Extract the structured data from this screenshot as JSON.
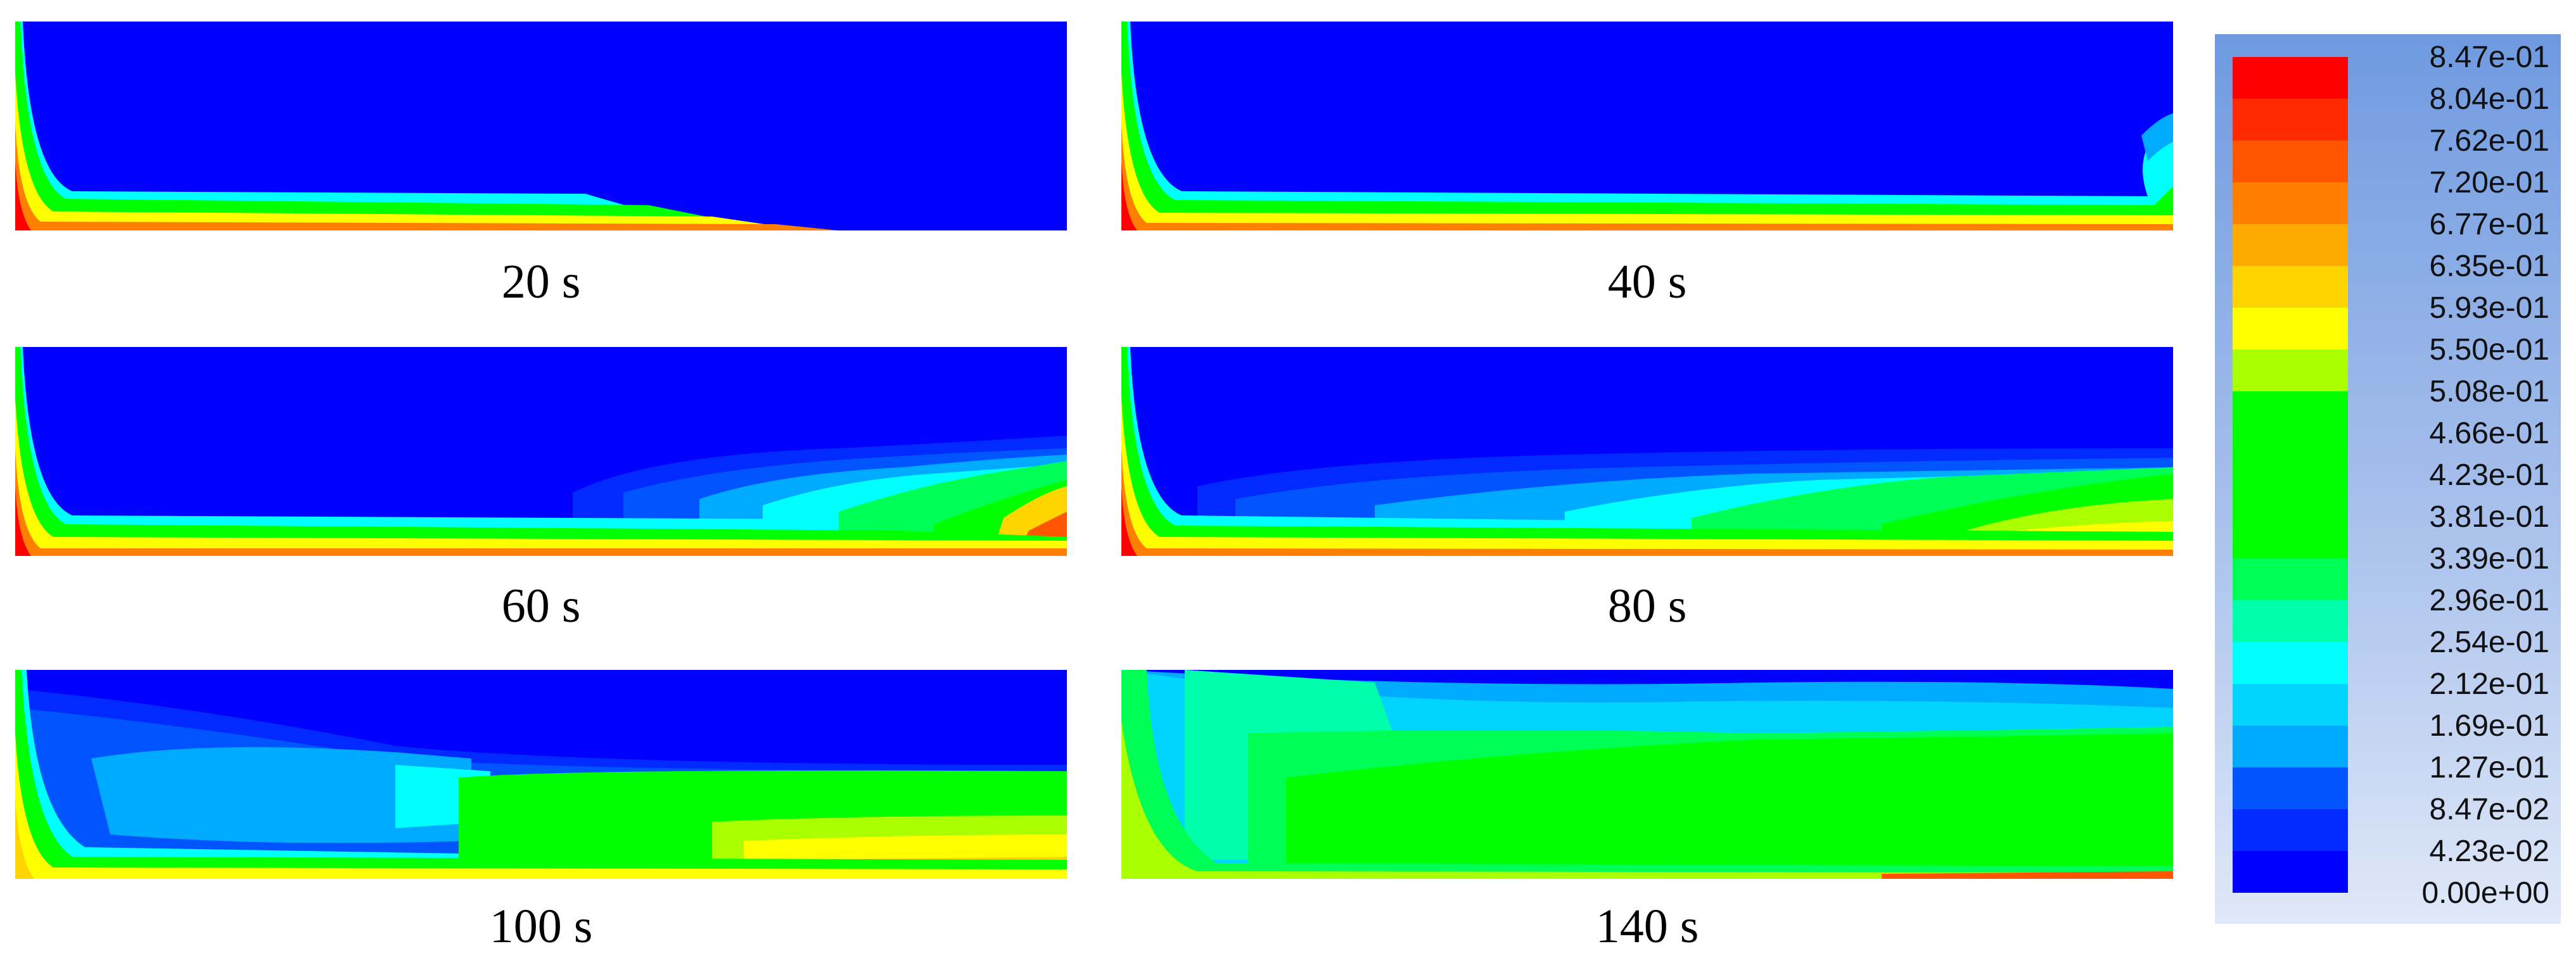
{
  "legend": {
    "colors": [
      "#ff0000",
      "#ff2a00",
      "#ff5500",
      "#ff7f00",
      "#ffaa00",
      "#ffd400",
      "#ffff00",
      "#aaff00",
      "#00ff00",
      "#00ff00",
      "#00ff00",
      "#00ff00",
      "#00ff55",
      "#00ffaa",
      "#00ffff",
      "#00d4ff",
      "#00aaff",
      "#0055ff",
      "#002aff",
      "#0000ff"
    ],
    "labels": [
      "8.47e-01",
      "8.04e-01",
      "7.62e-01",
      "7.20e-01",
      "6.77e-01",
      "6.35e-01",
      "5.93e-01",
      "5.50e-01",
      "5.08e-01",
      "4.66e-01",
      "4.23e-01",
      "3.81e-01",
      "3.39e-01",
      "2.96e-01",
      "2.54e-01",
      "2.12e-01",
      "1.69e-01",
      "1.27e-01",
      "8.47e-02",
      "4.23e-02",
      "0.00e+00"
    ]
  },
  "panels": [
    {
      "caption": "20 s"
    },
    {
      "caption": "40 s"
    },
    {
      "caption": "60 s"
    },
    {
      "caption": "80 s"
    },
    {
      "caption": "100 s"
    },
    {
      "caption": "140 s"
    }
  ]
}
